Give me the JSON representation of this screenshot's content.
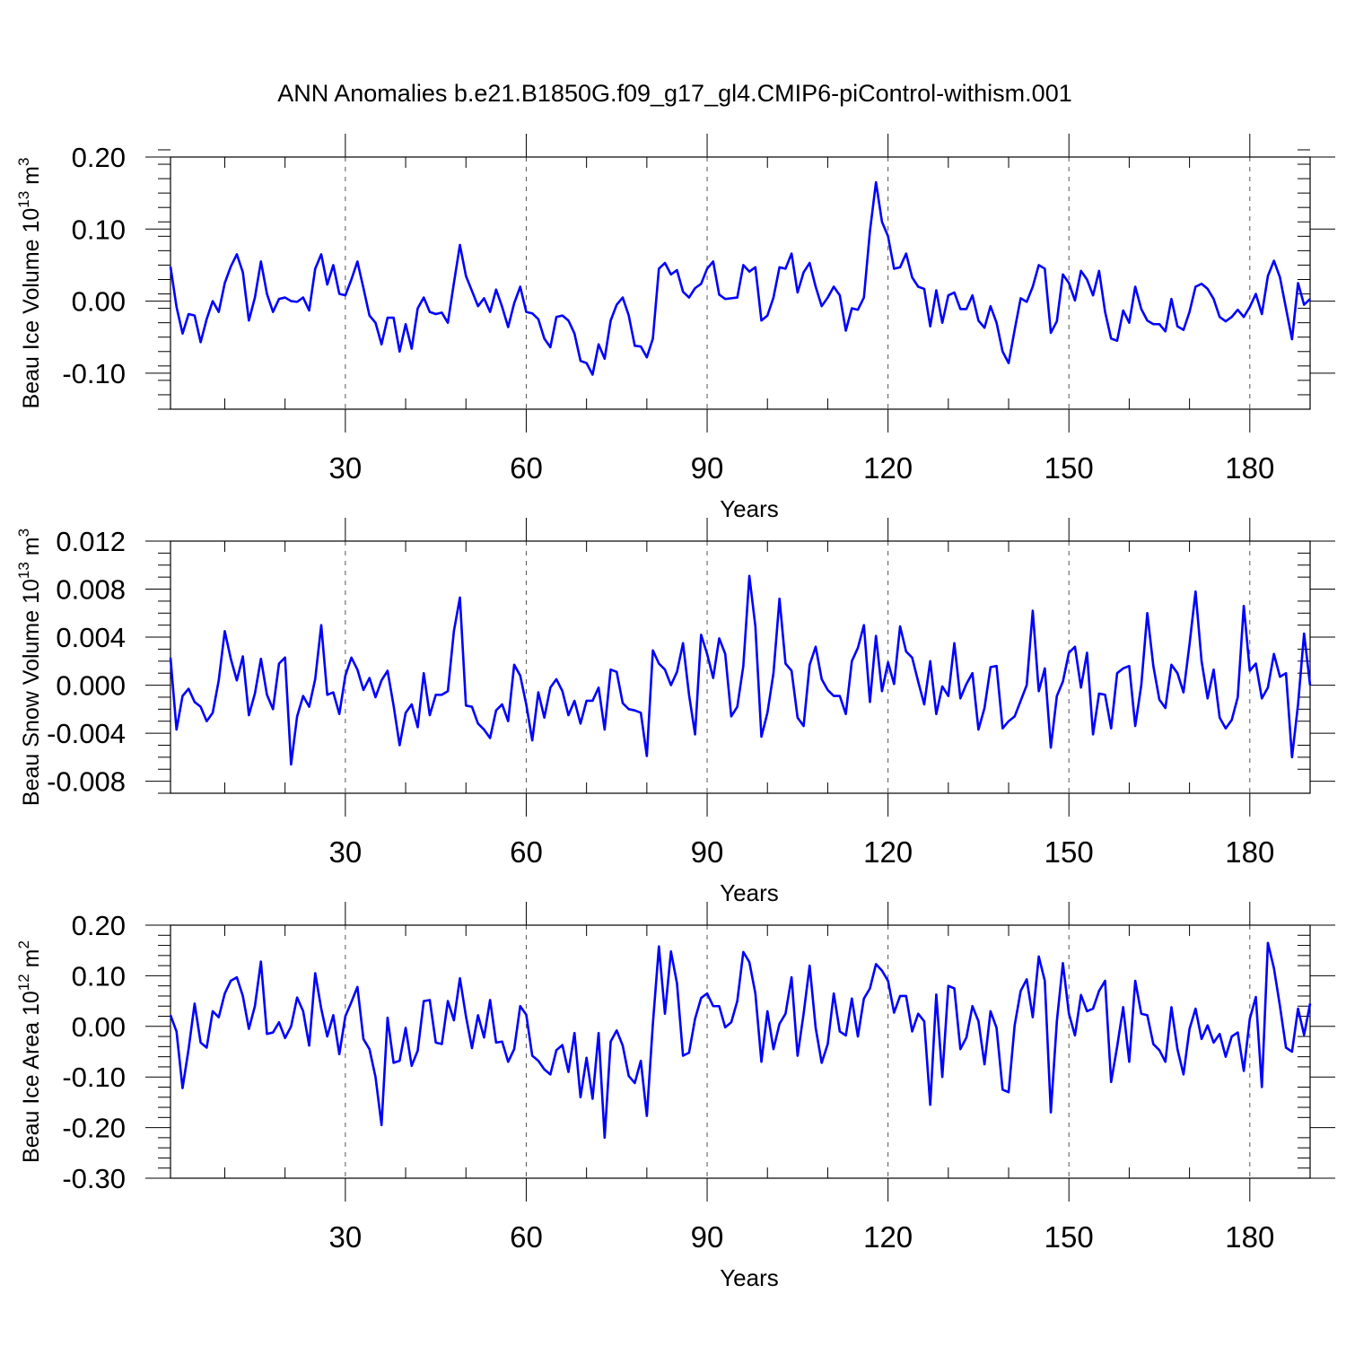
{
  "title": "ANN Anomalies b.e21.B1850G.f09_g17_gl4.CMIP6-piControl-withism.001",
  "colors": {
    "line": "#0000ff",
    "axis": "#000000",
    "grid": "#555555",
    "background": "#ffffff"
  },
  "chart_data": [
    {
      "type": "line",
      "xlabel": "Years",
      "ylabel": {
        "main": "Beau Ice Volume 10",
        "exponent": "13",
        "unit": " m",
        "unit_exponent": "3"
      },
      "xlim": [
        1,
        190
      ],
      "ylim": [
        -0.15,
        0.2
      ],
      "xticks": [
        30,
        60,
        90,
        120,
        150,
        180
      ],
      "xtick_labels": [
        "30",
        "60",
        "90",
        "120",
        "150",
        "180"
      ],
      "yticks": [
        -0.1,
        0.0,
        0.1,
        0.2
      ],
      "ytick_labels": [
        "-0.10",
        "0.00",
        "0.10",
        "0.20"
      ],
      "y_minor_step": 0.02,
      "x_minor_step": 10,
      "grid": "x-dashed",
      "x": "1..190",
      "values": [
        0.048,
        -0.008,
        -0.045,
        -0.018,
        -0.02,
        -0.057,
        -0.025,
        0.0,
        -0.015,
        0.025,
        0.048,
        0.065,
        0.04,
        -0.027,
        0.005,
        0.055,
        0.01,
        -0.015,
        0.003,
        0.005,
        0.0,
        -0.001,
        0.005,
        -0.013,
        0.045,
        0.065,
        0.023,
        0.05,
        0.01,
        0.008,
        0.03,
        0.055,
        0.018,
        -0.02,
        -0.03,
        -0.06,
        -0.023,
        -0.023,
        -0.07,
        -0.032,
        -0.066,
        -0.01,
        0.005,
        -0.015,
        -0.018,
        -0.016,
        -0.03,
        0.025,
        0.078,
        0.035,
        0.014,
        -0.007,
        0.004,
        -0.015,
        0.016,
        -0.008,
        -0.036,
        -0.003,
        0.02,
        -0.015,
        -0.017,
        -0.025,
        -0.052,
        -0.064,
        -0.022,
        -0.02,
        -0.027,
        -0.045,
        -0.083,
        -0.086,
        -0.102,
        -0.06,
        -0.08,
        -0.027,
        -0.005,
        0.005,
        -0.02,
        -0.062,
        -0.063,
        -0.078,
        -0.052,
        0.045,
        0.053,
        0.037,
        0.043,
        0.013,
        0.005,
        0.018,
        0.024,
        0.045,
        0.055,
        0.009,
        0.003,
        0.004,
        0.005,
        0.05,
        0.041,
        0.047,
        -0.027,
        -0.02,
        0.005,
        0.047,
        0.045,
        0.066,
        0.012,
        0.04,
        0.053,
        0.02,
        -0.007,
        0.005,
        0.02,
        0.008,
        -0.041,
        -0.01,
        -0.012,
        0.005,
        0.097,
        0.165,
        0.11,
        0.09,
        0.045,
        0.047,
        0.066,
        0.033,
        0.02,
        0.017,
        -0.035,
        0.015,
        -0.03,
        0.008,
        0.012,
        -0.011,
        -0.011,
        0.008,
        -0.027,
        -0.037,
        -0.007,
        -0.03,
        -0.07,
        -0.086,
        -0.04,
        0.004,
        -0.001,
        0.02,
        0.05,
        0.045,
        -0.044,
        -0.028,
        0.037,
        0.025,
        0.001,
        0.042,
        0.03,
        0.008,
        0.042,
        -0.015,
        -0.052,
        -0.055,
        -0.013,
        -0.03,
        0.02,
        -0.011,
        -0.027,
        -0.032,
        -0.032,
        -0.042,
        0.003,
        -0.035,
        -0.04,
        -0.015,
        0.02,
        0.024,
        0.017,
        0.003,
        -0.022,
        -0.028,
        -0.022,
        -0.012,
        -0.022,
        -0.008,
        0.01,
        -0.018,
        0.035,
        0.056,
        0.033,
        -0.01,
        -0.053,
        0.025,
        -0.005,
        0.003
      ]
    },
    {
      "type": "line",
      "xlabel": "Years",
      "ylabel": {
        "main": "Beau Snow Volume 10",
        "exponent": "13",
        "unit": " m",
        "unit_exponent": "3"
      },
      "xlim": [
        1,
        190
      ],
      "ylim": [
        -0.009,
        0.012
      ],
      "xticks": [
        30,
        60,
        90,
        120,
        150,
        180
      ],
      "xtick_labels": [
        "30",
        "60",
        "90",
        "120",
        "150",
        "180"
      ],
      "yticks": [
        -0.008,
        -0.004,
        0.0,
        0.004,
        0.008,
        0.012
      ],
      "ytick_labels": [
        "-0.008",
        "-0.004",
        "0.000",
        "0.004",
        "0.008",
        "0.012"
      ],
      "y_minor_step": 0.001,
      "x_minor_step": 10,
      "grid": "x-dashed",
      "x": "1..190",
      "values": [
        0.0023,
        -0.0037,
        -0.0009,
        -0.0003,
        -0.0014,
        -0.0018,
        -0.003,
        -0.0023,
        0.0004,
        0.0045,
        0.0022,
        0.0004,
        0.0024,
        -0.0025,
        -0.0007,
        0.0022,
        -0.0008,
        -0.002,
        0.0018,
        0.0023,
        -0.0066,
        -0.0026,
        -0.0009,
        -0.0018,
        0.0005,
        0.005,
        -0.0008,
        -0.0006,
        -0.0024,
        0.0008,
        0.0023,
        0.0013,
        -0.0004,
        0.0006,
        -0.001,
        0.0004,
        0.0012,
        -0.0017,
        -0.005,
        -0.0023,
        -0.0016,
        -0.0035,
        0.001,
        -0.0025,
        -0.0008,
        -0.0008,
        -0.0005,
        0.0045,
        0.0073,
        -0.0017,
        -0.0018,
        -0.0032,
        -0.0037,
        -0.0044,
        -0.0021,
        -0.0016,
        -0.003,
        0.0017,
        0.0008,
        -0.0016,
        -0.0046,
        -0.0006,
        -0.0027,
        -0.0002,
        0.0005,
        -0.0005,
        -0.0025,
        -0.0013,
        -0.0032,
        -0.0013,
        -0.0013,
        -0.0002,
        -0.0037,
        0.0013,
        0.0011,
        -0.0015,
        -0.002,
        -0.0021,
        -0.0023,
        -0.0059,
        0.0029,
        0.0018,
        0.0013,
        0.0,
        0.0011,
        0.0035,
        -0.0008,
        -0.0041,
        0.0042,
        0.0026,
        0.0006,
        0.0039,
        0.0026,
        -0.0026,
        -0.0018,
        0.0016,
        0.0091,
        0.0049,
        -0.0043,
        -0.0023,
        0.001,
        0.0072,
        0.0018,
        0.0012,
        -0.0027,
        -0.0034,
        0.0017,
        0.0032,
        0.0005,
        -0.0004,
        -0.0009,
        -0.0009,
        -0.0024,
        0.002,
        0.0031,
        0.005,
        -0.0014,
        0.0041,
        -0.0005,
        0.0019,
        0.0001,
        0.0049,
        0.0028,
        0.0023,
        0.0003,
        -0.0016,
        0.002,
        -0.0024,
        -0.0001,
        -0.0009,
        0.0035,
        -0.0011,
        0.0001,
        0.001,
        -0.0037,
        -0.0019,
        0.0015,
        0.0016,
        -0.0036,
        -0.003,
        -0.0026,
        -0.0013,
        0.0,
        0.0062,
        -0.0005,
        0.0014,
        -0.0052,
        -0.0009,
        0.0003,
        0.0027,
        0.0032,
        -0.0002,
        0.0027,
        -0.0041,
        -0.0007,
        -0.0008,
        -0.0036,
        0.001,
        0.0014,
        0.0016,
        -0.0034,
        0.0,
        0.006,
        0.0016,
        -0.0012,
        -0.0019,
        0.0017,
        0.001,
        -0.0006,
        0.0034,
        0.0078,
        0.002,
        -0.0011,
        0.0013,
        -0.0027,
        -0.0036,
        -0.0029,
        -0.001,
        0.0066,
        0.0012,
        0.0018,
        -0.0011,
        -0.0002,
        0.0026,
        0.0007,
        0.001,
        -0.006,
        -0.0016,
        0.0043,
        0.0
      ]
    },
    {
      "type": "line",
      "xlabel": "Years",
      "ylabel": {
        "main": "Beau Ice Area 10",
        "exponent": "12",
        "unit": " m",
        "unit_exponent": "2"
      },
      "xlim": [
        1,
        190
      ],
      "ylim": [
        -0.3,
        0.2
      ],
      "xticks": [
        30,
        60,
        90,
        120,
        150,
        180
      ],
      "xtick_labels": [
        "30",
        "60",
        "90",
        "120",
        "150",
        "180"
      ],
      "yticks": [
        -0.3,
        -0.2,
        -0.1,
        0.0,
        0.1,
        0.2
      ],
      "ytick_labels": [
        "-0.30",
        "-0.20",
        "-0.10",
        "0.00",
        "0.10",
        "0.20"
      ],
      "y_minor_step": 0.02,
      "x_minor_step": 10,
      "grid": "x-dashed",
      "x": "1..190",
      "values": [
        0.022,
        -0.01,
        -0.122,
        -0.045,
        0.045,
        -0.032,
        -0.042,
        0.03,
        0.018,
        0.065,
        0.09,
        0.097,
        0.06,
        -0.005,
        0.04,
        0.128,
        -0.015,
        -0.012,
        0.008,
        -0.023,
        0.0,
        0.057,
        0.03,
        -0.038,
        0.105,
        0.035,
        -0.02,
        0.022,
        -0.055,
        0.02,
        0.048,
        0.078,
        -0.025,
        -0.045,
        -0.1,
        -0.195,
        0.017,
        -0.072,
        -0.068,
        -0.003,
        -0.078,
        -0.048,
        0.05,
        0.052,
        -0.032,
        -0.035,
        0.05,
        0.012,
        0.095,
        0.02,
        -0.043,
        0.022,
        -0.022,
        0.052,
        -0.032,
        -0.03,
        -0.07,
        -0.045,
        0.04,
        0.023,
        -0.058,
        -0.068,
        -0.085,
        -0.095,
        -0.047,
        -0.037,
        -0.09,
        -0.013,
        -0.14,
        -0.062,
        -0.143,
        -0.013,
        -0.22,
        -0.03,
        -0.008,
        -0.038,
        -0.098,
        -0.112,
        -0.068,
        -0.177,
        0.005,
        0.158,
        0.025,
        0.148,
        0.085,
        -0.058,
        -0.052,
        0.015,
        0.056,
        0.065,
        0.04,
        0.04,
        -0.002,
        0.008,
        0.05,
        0.147,
        0.127,
        0.065,
        -0.07,
        0.03,
        -0.045,
        0.005,
        0.025,
        0.097,
        -0.058,
        0.025,
        0.12,
        -0.003,
        -0.072,
        -0.035,
        0.065,
        -0.01,
        -0.018,
        0.055,
        -0.02,
        0.055,
        0.075,
        0.123,
        0.11,
        0.09,
        0.027,
        0.06,
        0.06,
        -0.01,
        0.025,
        0.01,
        -0.155,
        0.063,
        -0.1,
        0.08,
        0.075,
        -0.045,
        -0.022,
        0.04,
        0.01,
        -0.075,
        0.03,
        -0.003,
        -0.125,
        -0.13,
        0.002,
        0.07,
        0.093,
        0.018,
        0.138,
        0.09,
        -0.17,
        0.01,
        0.125,
        0.025,
        -0.018,
        0.062,
        0.03,
        0.035,
        0.07,
        0.09,
        -0.11,
        -0.04,
        0.038,
        -0.07,
        0.09,
        0.025,
        0.022,
        -0.035,
        -0.047,
        -0.07,
        0.038,
        -0.045,
        -0.095,
        -0.005,
        0.035,
        -0.025,
        0.002,
        -0.032,
        -0.015,
        -0.06,
        -0.02,
        -0.012,
        -0.088,
        0.015,
        0.058,
        -0.12,
        0.165,
        0.115,
        0.04,
        -0.042,
        -0.05,
        0.035,
        -0.017,
        0.045
      ]
    }
  ]
}
